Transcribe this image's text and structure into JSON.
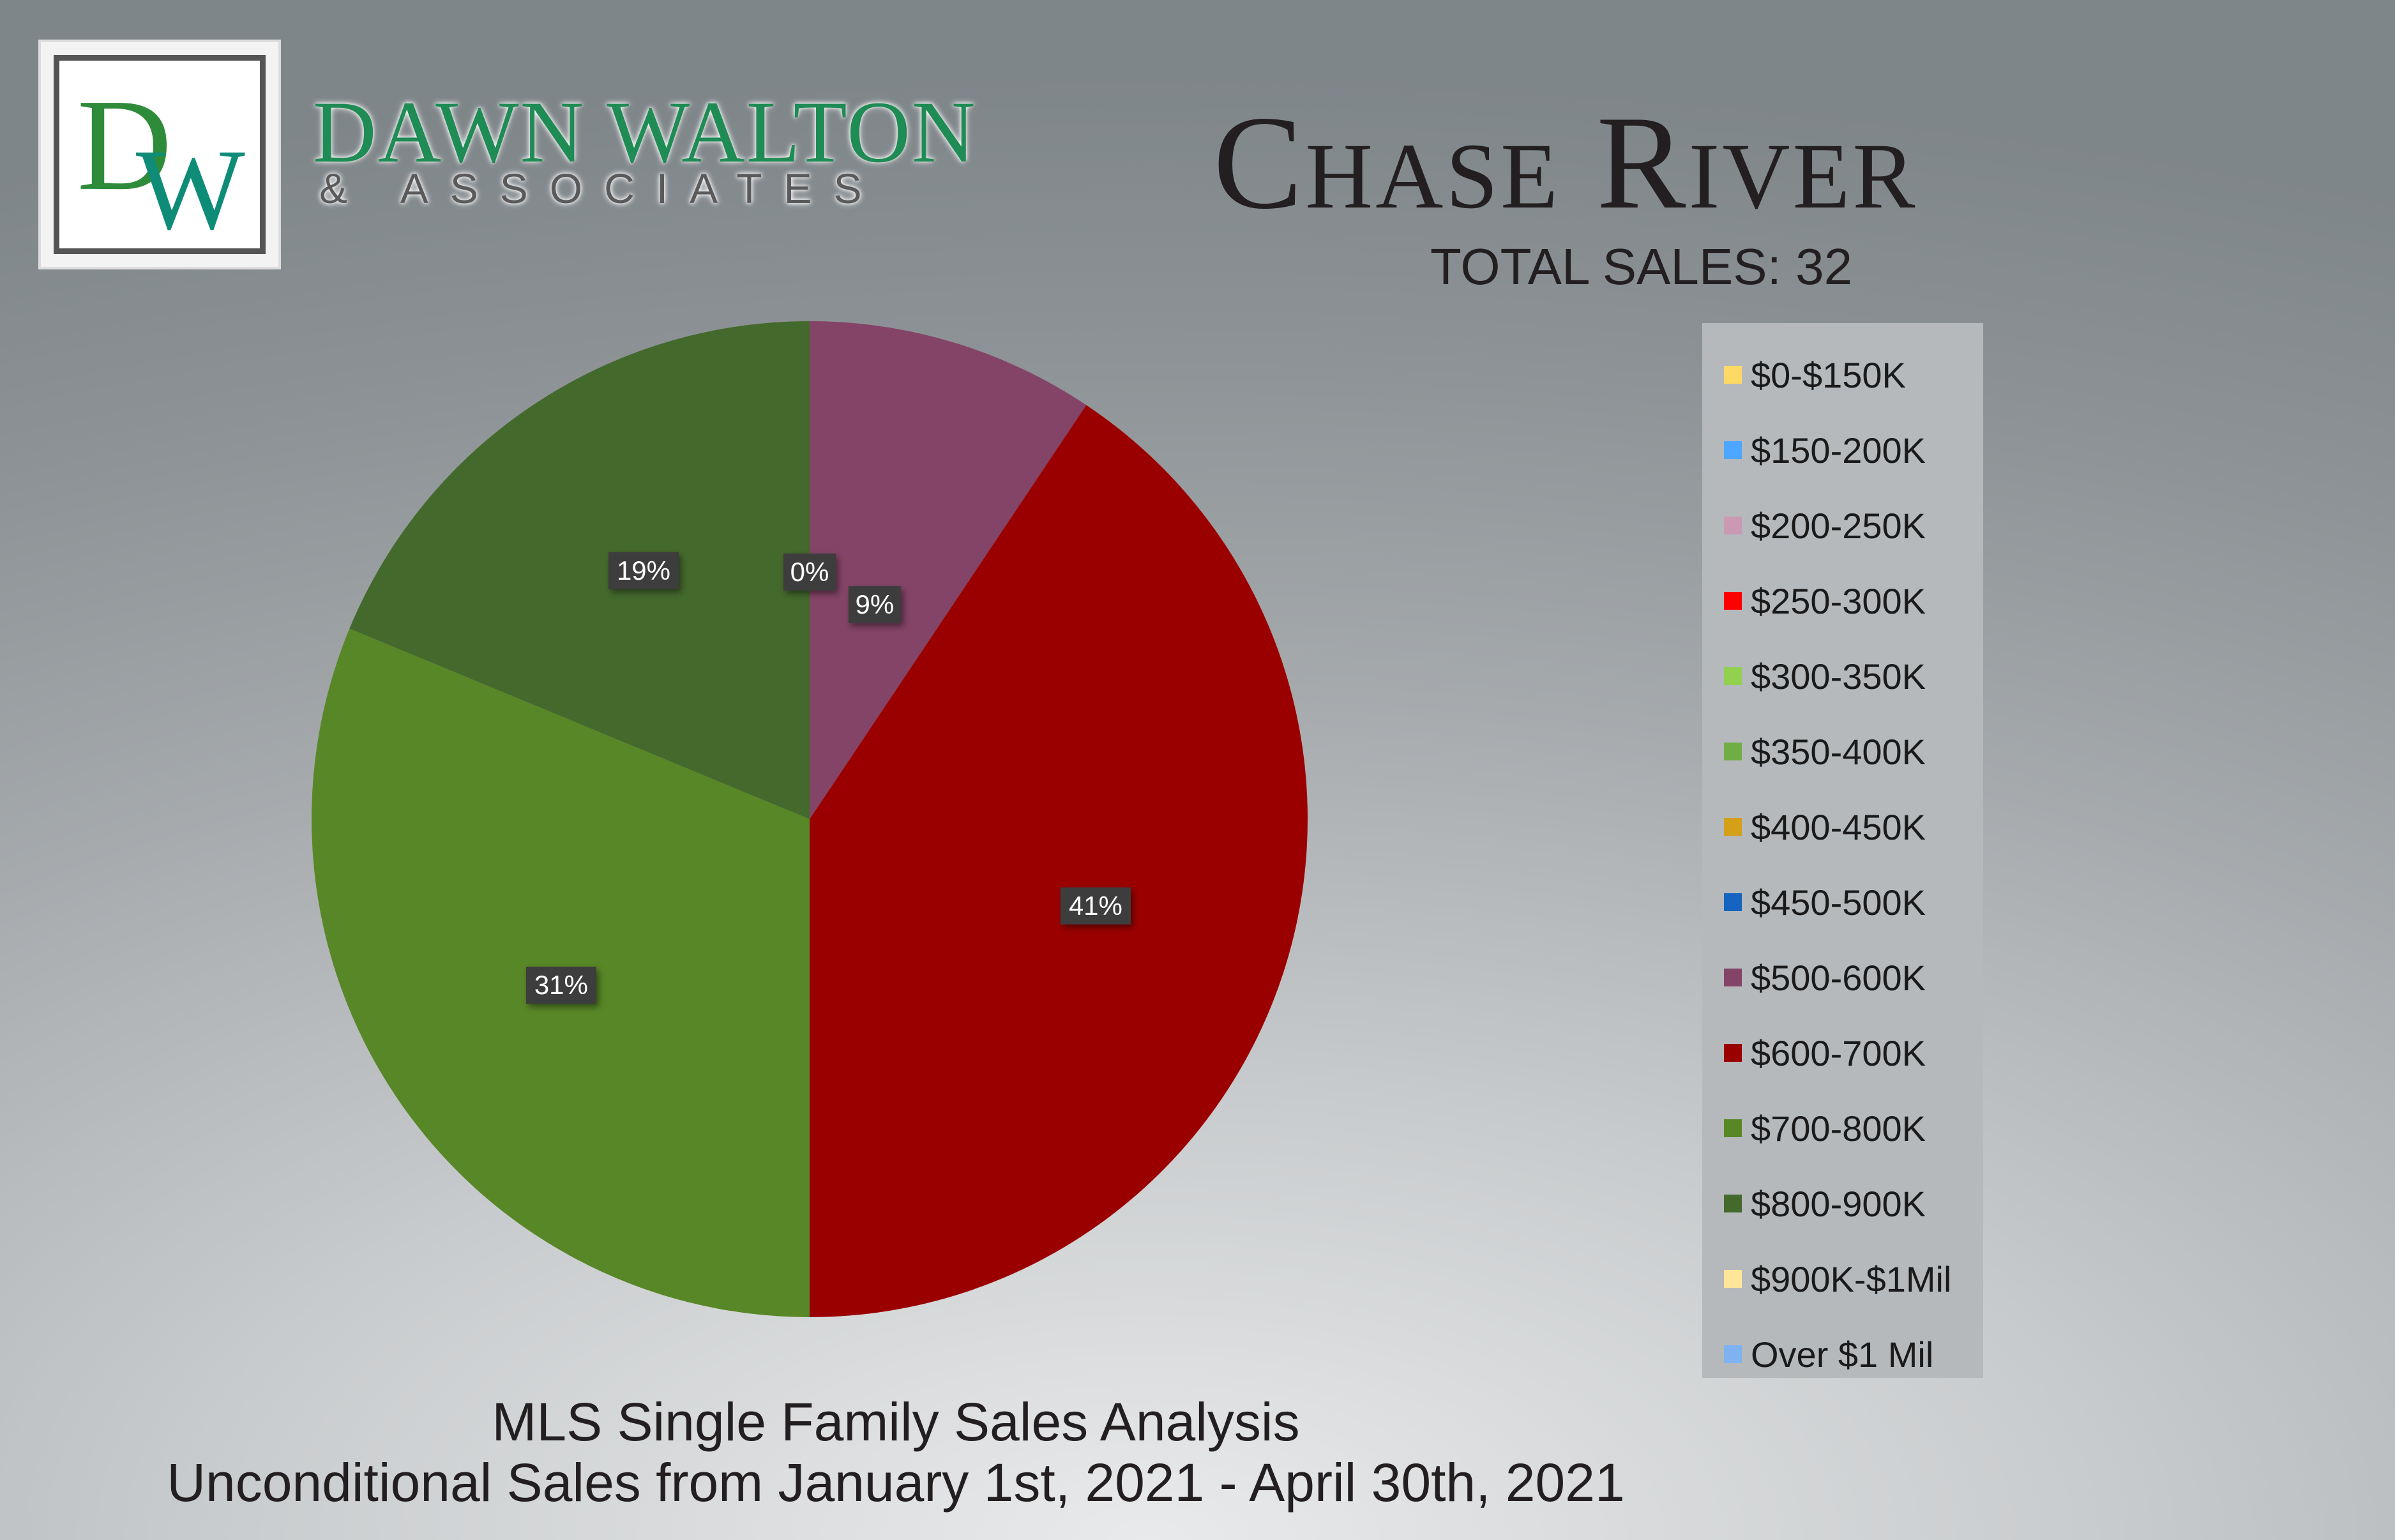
{
  "logo": {
    "monogram": "DW",
    "brand_name": "DAWN WALTON",
    "brand_sub": "& ASSOCIATES"
  },
  "header": {
    "title": "Chase River",
    "total_sales": "TOTAL SALES: 32"
  },
  "footer": {
    "title": "MLS Single Family Sales Analysis",
    "subtitle": "Unconditional Sales from January 1st, 2021 - April 30th, 2021"
  },
  "chart_data": {
    "type": "pie",
    "title": "Chase River",
    "legend_position": "right",
    "categories": [
      "$0-$150K",
      "$150-200K",
      "$200-250K",
      "$250-300K",
      "$300-350K",
      "$350-400K",
      "$400-450K",
      "$450-500K",
      "$500-600K",
      "$600-700K",
      "$700-800K",
      "$800-900K",
      "$900K-$1Mil",
      "Over $1 Mil"
    ],
    "values": [
      0,
      0,
      0,
      0,
      0,
      0,
      0,
      0,
      3,
      13,
      10,
      6,
      0,
      0
    ],
    "percent_labels": [
      "0%",
      "0%",
      "0%",
      "0%",
      "0%",
      "0%",
      "0%",
      "0%",
      "9%",
      "41%",
      "31%",
      "19%",
      "0%",
      "0%"
    ],
    "colors": [
      "#ffd966",
      "#4da6ff",
      "#cc99b3",
      "#ff0000",
      "#92d050",
      "#70ad47",
      "#d4a017",
      "#1565c0",
      "#844467",
      "#9b0000",
      "#588727",
      "#44692c",
      "#ffe699",
      "#7fb2f0"
    ]
  }
}
